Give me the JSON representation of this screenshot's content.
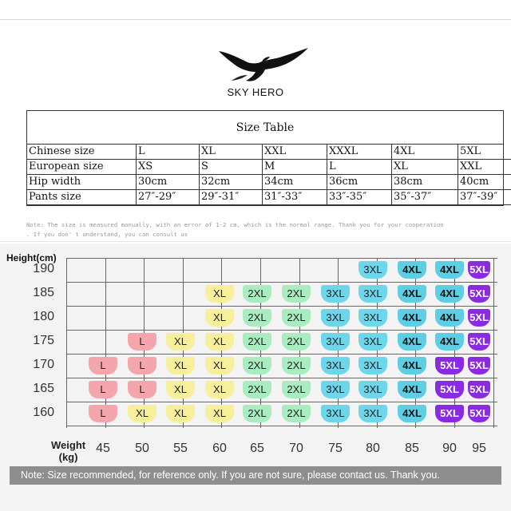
{
  "brand": {
    "name": "SKY HERO",
    "logo_icon": "eagle-icon"
  },
  "size_table": {
    "title": "Size Table",
    "rows": [
      [
        "Chinese size",
        "L",
        "XL",
        "XXL",
        "XXXL",
        "4XL",
        "5XL"
      ],
      [
        "European size",
        "XS",
        "S",
        "M",
        "L",
        "XL",
        "XXL"
      ],
      [
        "Hip width",
        "30cm",
        "32cm",
        "34cm",
        "36cm",
        "38cm",
        "40cm"
      ],
      [
        "Pants size",
        "27″-29″",
        "29″-31″",
        "31″-33″",
        "33″-35″",
        "35″-37″",
        "37″-39″"
      ]
    ]
  },
  "note_top_line1": "Note: The size is measured manually, with an error of 1-2 cm, which is the normal range. Thank you for your cooperation",
  "note_top_line2": ". If you don' t understand, you can consult us",
  "chart": {
    "ylabel": "Height(cm)",
    "xlabel_line1": "Weight",
    "xlabel_line2": "(kg)",
    "heights": [
      "190",
      "185",
      "180",
      "175",
      "170",
      "165",
      "160"
    ],
    "weights": [
      "45",
      "50",
      "55",
      "60",
      "65",
      "70",
      "75",
      "80",
      "85",
      "90",
      "95"
    ],
    "colors": {
      "L": "#f5a6ad",
      "XL": "#f7ef9c",
      "2XL": "#a8ecc0",
      "3XL": "#6ed6ea",
      "4XL": "#5fcde3",
      "5XL": "#8a2be2"
    },
    "cells": [
      {
        "w": "80",
        "h": "190",
        "size": "3XL"
      },
      {
        "w": "85",
        "h": "190",
        "size": "4XL"
      },
      {
        "w": "90",
        "h": "190",
        "size": "4XL"
      },
      {
        "w": "95",
        "h": "190",
        "size": "5XL"
      },
      {
        "w": "60",
        "h": "185",
        "size": "XL"
      },
      {
        "w": "65",
        "h": "185",
        "size": "2XL"
      },
      {
        "w": "70",
        "h": "185",
        "size": "2XL"
      },
      {
        "w": "75",
        "h": "185",
        "size": "3XL"
      },
      {
        "w": "80",
        "h": "185",
        "size": "3XL"
      },
      {
        "w": "85",
        "h": "185",
        "size": "4XL"
      },
      {
        "w": "90",
        "h": "185",
        "size": "4XL"
      },
      {
        "w": "95",
        "h": "185",
        "size": "5XL"
      },
      {
        "w": "60",
        "h": "180",
        "size": "XL"
      },
      {
        "w": "65",
        "h": "180",
        "size": "2XL"
      },
      {
        "w": "70",
        "h": "180",
        "size": "2XL"
      },
      {
        "w": "75",
        "h": "180",
        "size": "3XL"
      },
      {
        "w": "80",
        "h": "180",
        "size": "3XL"
      },
      {
        "w": "85",
        "h": "180",
        "size": "4XL"
      },
      {
        "w": "90",
        "h": "180",
        "size": "4XL"
      },
      {
        "w": "95",
        "h": "180",
        "size": "5XL"
      },
      {
        "w": "50",
        "h": "175",
        "size": "L"
      },
      {
        "w": "55",
        "h": "175",
        "size": "XL"
      },
      {
        "w": "60",
        "h": "175",
        "size": "XL"
      },
      {
        "w": "65",
        "h": "175",
        "size": "2XL"
      },
      {
        "w": "70",
        "h": "175",
        "size": "2XL"
      },
      {
        "w": "75",
        "h": "175",
        "size": "3XL"
      },
      {
        "w": "80",
        "h": "175",
        "size": "3XL"
      },
      {
        "w": "85",
        "h": "175",
        "size": "4XL"
      },
      {
        "w": "90",
        "h": "175",
        "size": "4XL"
      },
      {
        "w": "95",
        "h": "175",
        "size": "5XL"
      },
      {
        "w": "45",
        "h": "170",
        "size": "L"
      },
      {
        "w": "50",
        "h": "170",
        "size": "L"
      },
      {
        "w": "55",
        "h": "170",
        "size": "XL"
      },
      {
        "w": "60",
        "h": "170",
        "size": "XL"
      },
      {
        "w": "65",
        "h": "170",
        "size": "2XL"
      },
      {
        "w": "70",
        "h": "170",
        "size": "2XL"
      },
      {
        "w": "75",
        "h": "170",
        "size": "3XL"
      },
      {
        "w": "80",
        "h": "170",
        "size": "3XL"
      },
      {
        "w": "85",
        "h": "170",
        "size": "4XL"
      },
      {
        "w": "90",
        "h": "170",
        "size": "5XL"
      },
      {
        "w": "95",
        "h": "170",
        "size": "5XL"
      },
      {
        "w": "45",
        "h": "165",
        "size": "L"
      },
      {
        "w": "50",
        "h": "165",
        "size": "L"
      },
      {
        "w": "55",
        "h": "165",
        "size": "XL"
      },
      {
        "w": "60",
        "h": "165",
        "size": "XL"
      },
      {
        "w": "65",
        "h": "165",
        "size": "2XL"
      },
      {
        "w": "70",
        "h": "165",
        "size": "2XL"
      },
      {
        "w": "75",
        "h": "165",
        "size": "3XL"
      },
      {
        "w": "80",
        "h": "165",
        "size": "3XL"
      },
      {
        "w": "85",
        "h": "165",
        "size": "4XL"
      },
      {
        "w": "90",
        "h": "165",
        "size": "5XL"
      },
      {
        "w": "95",
        "h": "165",
        "size": "5XL"
      },
      {
        "w": "45",
        "h": "160",
        "size": "L"
      },
      {
        "w": "50",
        "h": "160",
        "size": "XL"
      },
      {
        "w": "55",
        "h": "160",
        "size": "XL"
      },
      {
        "w": "60",
        "h": "160",
        "size": "XL"
      },
      {
        "w": "65",
        "h": "160",
        "size": "2XL"
      },
      {
        "w": "70",
        "h": "160",
        "size": "2XL"
      },
      {
        "w": "75",
        "h": "160",
        "size": "3XL"
      },
      {
        "w": "80",
        "h": "160",
        "size": "3XL"
      },
      {
        "w": "85",
        "h": "160",
        "size": "4XL"
      },
      {
        "w": "90",
        "h": "160",
        "size": "5XL"
      },
      {
        "w": "95",
        "h": "160",
        "size": "5XL"
      }
    ]
  },
  "bottom_note": "Note: Size recommended, for reference only. If you are not sure, please contact us. Thank you."
}
